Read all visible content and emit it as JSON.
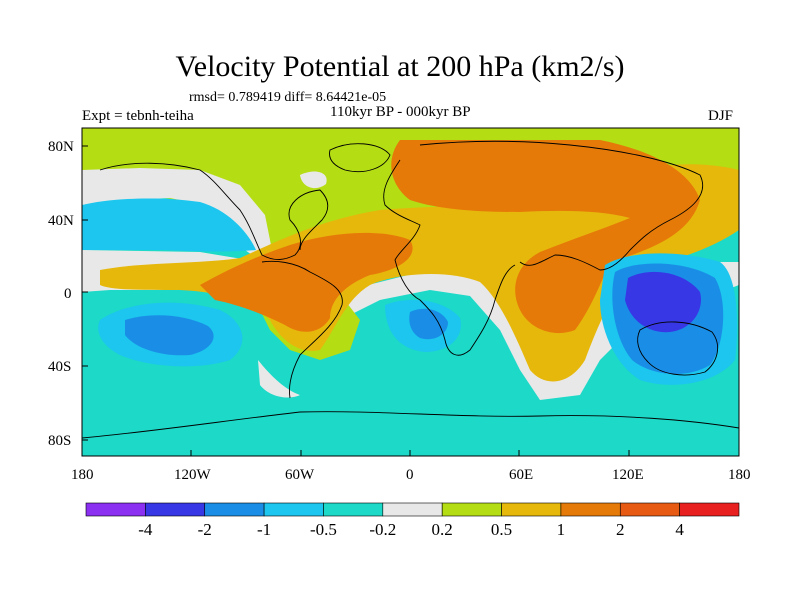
{
  "title": "Velocity Potential at 200 hPa (km2/s)",
  "stats": "rmsd= 0.789419 diff= 8.64421e-05",
  "expt": "Expt = tebnh-teiha",
  "period": "110kyr BP - 000kyr BP",
  "season": "DJF",
  "y_ticks": [
    "80N",
    "40N",
    "0",
    "40S",
    "80S"
  ],
  "x_ticks": [
    "180",
    "120W",
    "60W",
    "0",
    "60E",
    "120E",
    "180"
  ],
  "legend": {
    "colors": [
      "#8b2ff0",
      "#3737e6",
      "#1a8ee6",
      "#1cc6ee",
      "#1cd9c8",
      "#e8e8e8",
      "#b4dd14",
      "#e6b80c",
      "#e67a08",
      "#e65a14",
      "#e82020"
    ],
    "labels": [
      "-4",
      "-2",
      "-1",
      "-0.5",
      "-0.2",
      "0.2",
      "0.5",
      "1",
      "2",
      "4"
    ]
  },
  "colors": {
    "bg": "#1cd9c8",
    "light_blue": "#1cc6ee",
    "mid_blue": "#1a8ee6",
    "deep_blue": "#3737e6",
    "white": "#e8e8e8",
    "yellow_green": "#b4dd14",
    "gold": "#e6b80c",
    "orange": "#e67a08"
  }
}
